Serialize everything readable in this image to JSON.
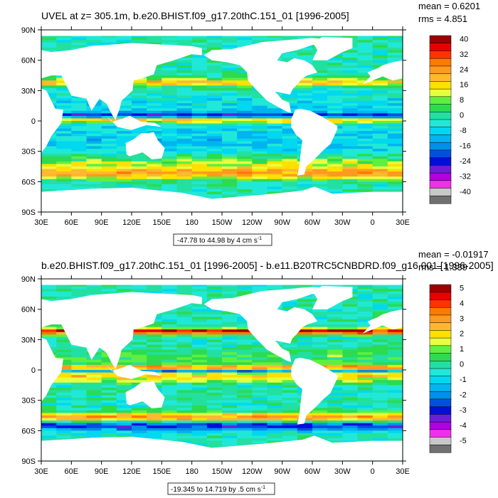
{
  "colors": {
    "land": "#ffffff",
    "ocean_base": "#22e0a0",
    "frame": "#000000"
  },
  "chart_data": [
    {
      "type": "heatmap",
      "title": "UVEL at z= 305.1m, b.e20.BHIST.f09_g17.20thC.151_01 [1996-2005]",
      "stats": {
        "mean": "mean = 0.6201",
        "rms": "rms = 4.851"
      },
      "x_ticks": [
        "30E",
        "60E",
        "90E",
        "120E",
        "150E",
        "180",
        "150W",
        "120W",
        "90W",
        "60W",
        "30W",
        "0",
        "30E"
      ],
      "y_ticks": [
        "90N",
        "60N",
        "30N",
        "0",
        "30S",
        "60S",
        "90S"
      ],
      "xlim": [
        30,
        390
      ],
      "ylim": [
        -90,
        90
      ],
      "subtitle": "-47.78 to 44.98 by 4 cm s",
      "units_sup": "-1",
      "colorbar": {
        "labels": [
          "40",
          "32",
          "24",
          "16",
          "8",
          "0",
          "-8",
          "-16",
          "-24",
          "-32",
          "-40"
        ],
        "colors": [
          "#9e0000",
          "#e60000",
          "#ff3300",
          "#ff7a00",
          "#ff9a20",
          "#ffb830",
          "#ffe000",
          "#e8ff40",
          "#60ef40",
          "#2cdb50",
          "#22e0a0",
          "#20e8d8",
          "#00d8f0",
          "#00b4f0",
          "#0090e8",
          "#0050e0",
          "#0010d8",
          "#6a1ed8",
          "#b000e0",
          "#f030e8",
          "#c8c8c8",
          "#707070"
        ]
      },
      "bands": [
        {
          "lat": 5,
          "width": 3,
          "value": -20
        },
        {
          "lat": 1,
          "width": 3,
          "value": 25
        },
        {
          "lat": -42,
          "width": 8,
          "value": 12
        },
        {
          "lat": -52,
          "width": 6,
          "value": 20
        },
        {
          "lat": 38,
          "width": 4,
          "value": 18
        },
        {
          "lat": -20,
          "width": 20,
          "value": -6
        },
        {
          "lat": 15,
          "width": 12,
          "value": -4
        }
      ]
    },
    {
      "type": "heatmap",
      "title": "b.e20.BHIST.f09_g17.20thC.151_01 [1996-2005] - b.e11.B20TRC5CNBDRD.f09_g16.001 [1996-2005]",
      "stats": {
        "mean": "mean = -0.01917",
        "rms": "rms = 1.339"
      },
      "x_ticks": [
        "30E",
        "60E",
        "90E",
        "120E",
        "150E",
        "180",
        "150W",
        "120W",
        "90W",
        "60W",
        "30W",
        "0",
        "30E"
      ],
      "y_ticks": [
        "90N",
        "60N",
        "30N",
        "0",
        "30S",
        "60S",
        "90S"
      ],
      "xlim": [
        30,
        390
      ],
      "ylim": [
        -90,
        90
      ],
      "subtitle": "-19.345 to 14.719 by .5 cm s",
      "units_sup": "-1",
      "colorbar": {
        "labels": [
          "5",
          "4",
          "3",
          "2",
          "1",
          "0",
          "-1",
          "-2",
          "-3",
          "-4",
          "-5"
        ],
        "colors": [
          "#9e0000",
          "#e60000",
          "#ff3300",
          "#ff7a00",
          "#ff9a20",
          "#ffb830",
          "#ffe000",
          "#e8ff40",
          "#60ef40",
          "#2cdb50",
          "#22e0a0",
          "#20e8d8",
          "#00d8f0",
          "#00b4f0",
          "#0090e8",
          "#0050e0",
          "#0010d8",
          "#6a1ed8",
          "#b000e0",
          "#f030e8",
          "#c8c8c8",
          "#707070"
        ]
      },
      "bands": [
        {
          "lat": 2,
          "width": 3,
          "value": 3.5
        },
        {
          "lat": -1,
          "width": 2,
          "value": -3
        },
        {
          "lat": -5,
          "width": 3,
          "value": 2.5
        },
        {
          "lat": -10,
          "width": 3,
          "value": 1.5
        },
        {
          "lat": -47,
          "width": 5,
          "value": 3
        },
        {
          "lat": -55,
          "width": 5,
          "value": -2.5
        },
        {
          "lat": 38,
          "width": 3,
          "value": 4.5
        },
        {
          "lat": 12,
          "width": 8,
          "value": 0.8
        }
      ]
    }
  ]
}
